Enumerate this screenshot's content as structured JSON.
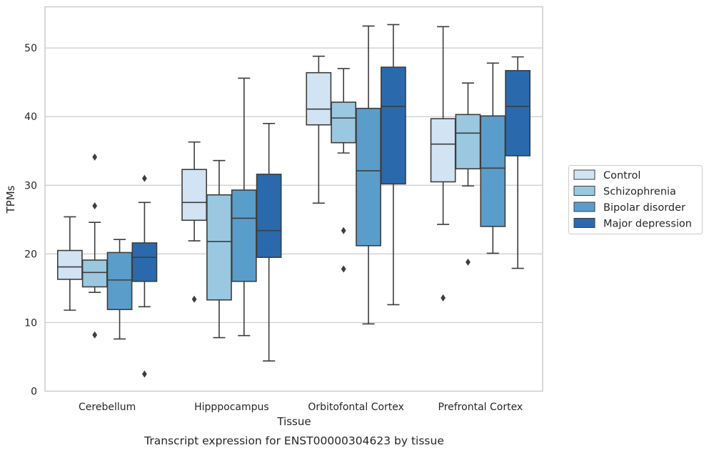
{
  "caption": "Transcript expression for ENST00000304623 by tissue",
  "chart_data": {
    "type": "boxplot",
    "xlabel": "Tissue",
    "ylabel": "TPMs",
    "ylim": [
      0,
      56
    ],
    "yticks": [
      0,
      10,
      20,
      30,
      40,
      50
    ],
    "grid": "horizontal",
    "legend_position": "right",
    "categories": [
      "Cerebellum",
      "Hipppocampus",
      "Orbitofontal Cortex",
      "Prefrontal Cortex"
    ],
    "series": [
      {
        "name": "Control",
        "color": "#d2e3f3",
        "boxes": [
          {
            "whislo": 11.8,
            "q1": 16.3,
            "med": 18.1,
            "q3": 20.5,
            "whishi": 25.4,
            "fliers": []
          },
          {
            "whislo": 21.9,
            "q1": 24.9,
            "med": 27.5,
            "q3": 32.3,
            "whishi": 36.3,
            "fliers": [
              13.4
            ]
          },
          {
            "whislo": 27.4,
            "q1": 38.8,
            "med": 41.1,
            "q3": 46.4,
            "whishi": 48.8,
            "fliers": []
          },
          {
            "whislo": 24.3,
            "q1": 30.5,
            "med": 36.0,
            "q3": 39.7,
            "whishi": 53.1,
            "fliers": [
              13.6
            ]
          }
        ]
      },
      {
        "name": "Schizophrenia",
        "color": "#9ac8e0",
        "boxes": [
          {
            "whislo": 14.4,
            "q1": 15.2,
            "med": 17.3,
            "q3": 19.1,
            "whishi": 24.6,
            "fliers": [
              34.1,
              27.0,
              8.2
            ]
          },
          {
            "whislo": 7.8,
            "q1": 13.3,
            "med": 21.8,
            "q3": 28.6,
            "whishi": 33.6,
            "fliers": []
          },
          {
            "whislo": 34.7,
            "q1": 36.2,
            "med": 39.8,
            "q3": 42.1,
            "whishi": 47.0,
            "fliers": [
              23.4,
              17.8
            ]
          },
          {
            "whislo": 29.9,
            "q1": 32.4,
            "med": 37.6,
            "q3": 40.3,
            "whishi": 44.9,
            "fliers": [
              18.8
            ]
          }
        ]
      },
      {
        "name": "Bipolar disorder",
        "color": "#5a9dcb",
        "boxes": [
          {
            "whislo": 7.6,
            "q1": 11.9,
            "med": 16.2,
            "q3": 20.2,
            "whishi": 22.1,
            "fliers": []
          },
          {
            "whislo": 8.1,
            "q1": 16.0,
            "med": 25.2,
            "q3": 29.3,
            "whishi": 45.6,
            "fliers": []
          },
          {
            "whislo": 9.8,
            "q1": 21.2,
            "med": 32.1,
            "q3": 41.2,
            "whishi": 53.2,
            "fliers": []
          },
          {
            "whislo": 20.1,
            "q1": 24.0,
            "med": 32.5,
            "q3": 40.1,
            "whishi": 47.8,
            "fliers": []
          }
        ]
      },
      {
        "name": "Major depression",
        "color": "#2a6aac",
        "boxes": [
          {
            "whislo": 12.3,
            "q1": 16.0,
            "med": 19.5,
            "q3": 21.6,
            "whishi": 27.5,
            "fliers": [
              31.0,
              2.5
            ]
          },
          {
            "whislo": 4.4,
            "q1": 19.5,
            "med": 23.4,
            "q3": 31.6,
            "whishi": 39.0,
            "fliers": []
          },
          {
            "whislo": 12.6,
            "q1": 30.2,
            "med": 41.5,
            "q3": 47.2,
            "whishi": 53.4,
            "fliers": []
          },
          {
            "whislo": 17.9,
            "q1": 34.3,
            "med": 41.5,
            "q3": 46.7,
            "whishi": 48.7,
            "fliers": []
          }
        ]
      }
    ]
  }
}
